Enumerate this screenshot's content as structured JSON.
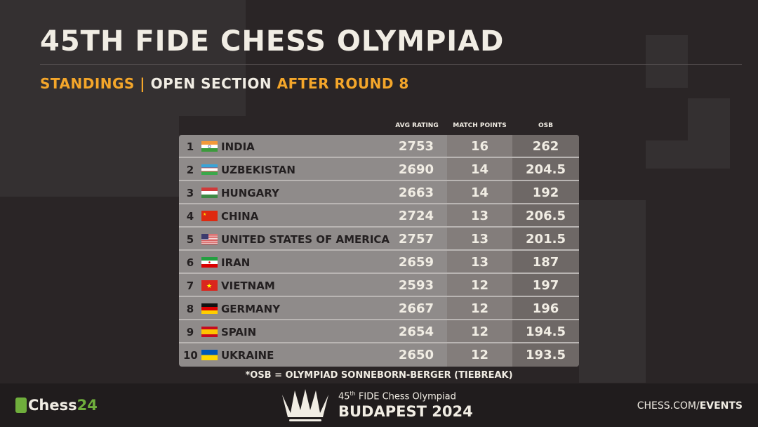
{
  "title": "45TH FIDE CHESS OLYMPIAD",
  "subtitle": {
    "part1": "STANDINGS |",
    "part2": "OPEN SECTION",
    "part3": "AFTER ROUND 8"
  },
  "headers": {
    "rating": "AVG RATING",
    "match_points": "MATCH POINTS",
    "osb": "OSB"
  },
  "rows": [
    {
      "rank": "1",
      "country": "INDIA",
      "flag": "india",
      "rating": "2753",
      "mp": "16",
      "osb": "262"
    },
    {
      "rank": "2",
      "country": "UZBEKISTAN",
      "flag": "uzbekistan",
      "rating": "2690",
      "mp": "14",
      "osb": "204.5"
    },
    {
      "rank": "3",
      "country": "HUNGARY",
      "flag": "hungary",
      "rating": "2663",
      "mp": "14",
      "osb": "192"
    },
    {
      "rank": "4",
      "country": "CHINA",
      "flag": "china",
      "rating": "2724",
      "mp": "13",
      "osb": "206.5"
    },
    {
      "rank": "5",
      "country": "UNITED STATES OF AMERICA",
      "flag": "usa",
      "rating": "2757",
      "mp": "13",
      "osb": "201.5"
    },
    {
      "rank": "6",
      "country": "IRAN",
      "flag": "iran",
      "rating": "2659",
      "mp": "13",
      "osb": "187"
    },
    {
      "rank": "7",
      "country": "VIETNAM",
      "flag": "vietnam",
      "rating": "2593",
      "mp": "12",
      "osb": "197"
    },
    {
      "rank": "8",
      "country": "GERMANY",
      "flag": "germany",
      "rating": "2667",
      "mp": "12",
      "osb": "196"
    },
    {
      "rank": "9",
      "country": "SPAIN",
      "flag": "spain",
      "rating": "2654",
      "mp": "12",
      "osb": "194.5"
    },
    {
      "rank": "10",
      "country": "UKRAINE",
      "flag": "ukraine",
      "rating": "2650",
      "mp": "12",
      "osb": "193.5"
    }
  ],
  "footnote": "*OSB = OLYMPIAD SONNEBORN-BERGER (TIEBREAK)",
  "footer": {
    "brand_a": "Chess",
    "brand_b": "24",
    "event_line1_a": "45",
    "event_line1_sup": "th",
    "event_line1_b": " FIDE Chess Olympiad",
    "event_line2": "BUDAPEST 2024",
    "site_a": "CHESS.COM/",
    "site_b": "EVENTS"
  },
  "colors": {
    "accent": "#f4a62a",
    "green": "#6fae3c",
    "bg": "#2a2526"
  }
}
